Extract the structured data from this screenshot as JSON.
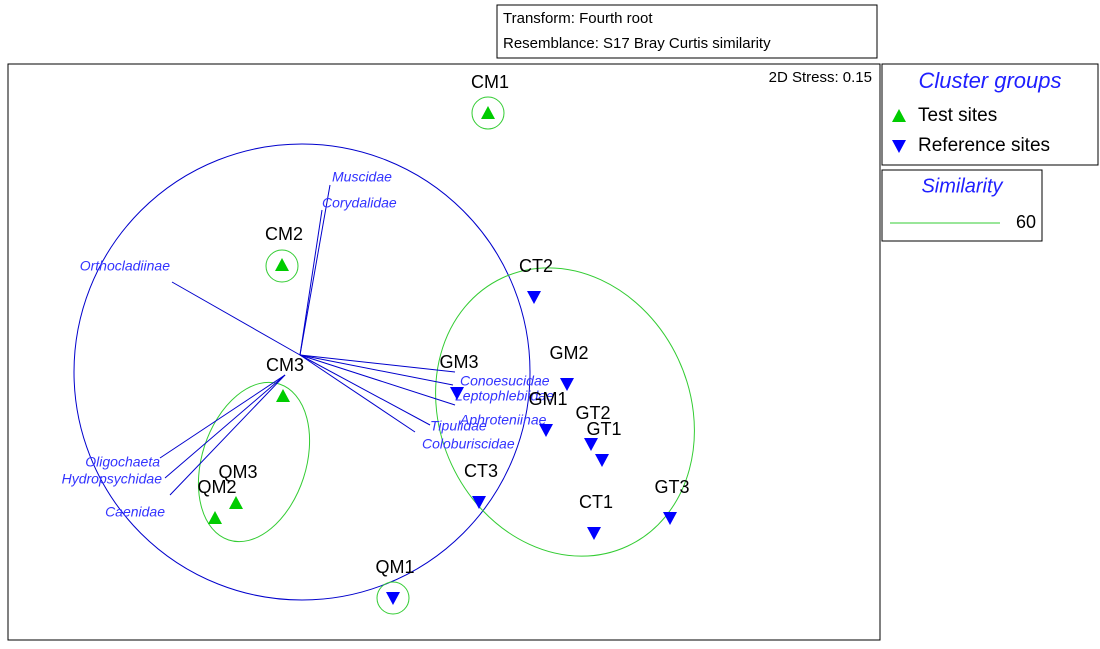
{
  "header": {
    "transform": "Transform: Fourth root",
    "resemblance": "Resemblance: S17 Bray Curtis similarity"
  },
  "stress": "2D Stress: 0.15",
  "legend": {
    "title": "Cluster groups",
    "items": [
      "Test sites",
      "Reference sites"
    ]
  },
  "similarity": {
    "title": "Similarity",
    "items": [
      "60"
    ]
  },
  "sites": [
    {
      "label": "CM1",
      "group": 0
    },
    {
      "label": "CM2",
      "group": 0
    },
    {
      "label": "CM3",
      "group": 0
    },
    {
      "label": "QM3",
      "group": 0
    },
    {
      "label": "QM2",
      "group": 0
    },
    {
      "label": "QM1",
      "group": 1
    },
    {
      "label": "CT2",
      "group": 1
    },
    {
      "label": "GM3",
      "group": 1
    },
    {
      "label": "GM2",
      "group": 1
    },
    {
      "label": "GM1",
      "group": 1
    },
    {
      "label": "GT2",
      "group": 1
    },
    {
      "label": "GT1",
      "group": 1
    },
    {
      "label": "CT3",
      "group": 1
    },
    {
      "label": "CT1",
      "group": 1
    },
    {
      "label": "GT3",
      "group": 1
    }
  ],
  "vectors": [
    "Muscidae",
    "Corydalidae",
    "Orthocladiinae",
    "Conoesucidae",
    "Leptophlebiidae",
    "Aphroteniinae",
    "Tipulidae",
    "Coloburiscidae",
    "Oligochaeta",
    "Hydropsychidae",
    "Caenidae"
  ]
}
